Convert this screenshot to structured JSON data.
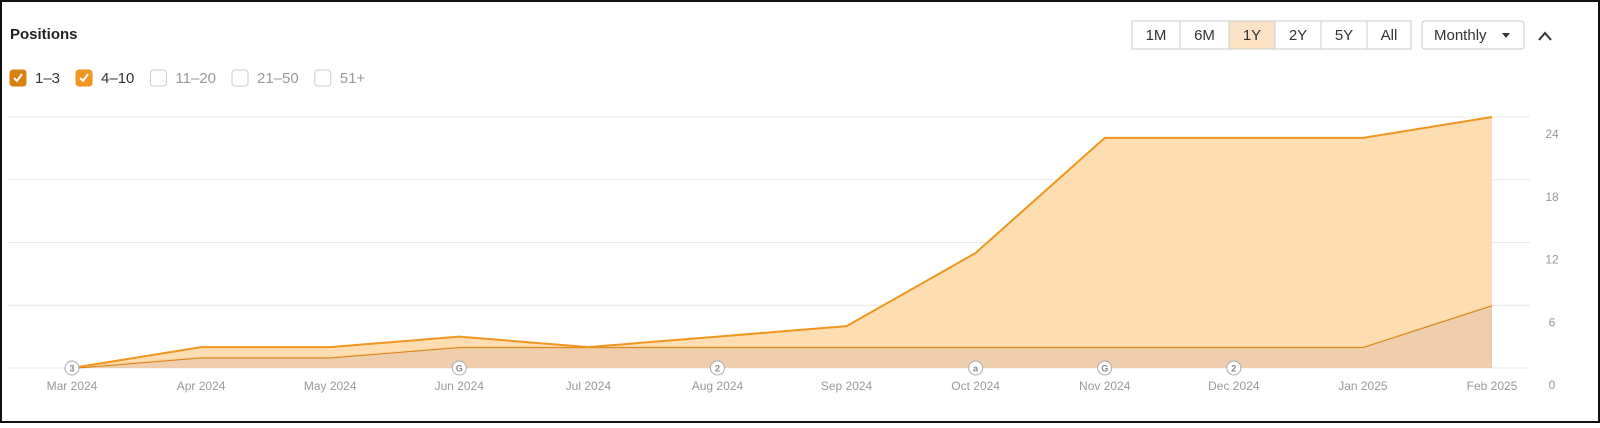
{
  "header": {
    "title": "Positions",
    "ranges": [
      "1M",
      "6M",
      "1Y",
      "2Y",
      "5Y",
      "All"
    ],
    "active_range": "1Y",
    "interval": "Monthly"
  },
  "chart_data": {
    "type": "area",
    "stacked": true,
    "categories": [
      "Mar 2024",
      "Apr 2024",
      "May 2024",
      "Jun 2024",
      "Jul 2024",
      "Aug 2024",
      "Sep 2024",
      "Oct 2024",
      "Nov 2024",
      "Dec 2024",
      "Jan 2025",
      "Feb 2025"
    ],
    "series": [
      {
        "name": "1–3",
        "checked": true,
        "color": "#d9800f",
        "fill": "#ecc9a4",
        "values": [
          0,
          1,
          1,
          2,
          2,
          2,
          2,
          2,
          2,
          2,
          2,
          6
        ]
      },
      {
        "name": "4–10",
        "checked": true,
        "color": "#f0961e",
        "fill": "#fdd9a8",
        "values": [
          0,
          1,
          1,
          1,
          0,
          1,
          2,
          9,
          20,
          20,
          20,
          18
        ]
      }
    ],
    "unchecked_series": [
      "11–20",
      "21–50",
      "51+"
    ],
    "annotations": [
      {
        "label": "3",
        "x": "Mar 2024"
      },
      {
        "label": "G",
        "x": "Jun 2024"
      },
      {
        "label": "2",
        "x": "Aug 2024"
      },
      {
        "label": "a",
        "x": "Oct 2024"
      },
      {
        "label": "G",
        "x": "Nov 2024"
      },
      {
        "label": "2",
        "x": "Dec 2024"
      }
    ],
    "ylim": [
      0,
      24
    ],
    "yticks": [
      0,
      6,
      12,
      18,
      24
    ],
    "grid": true
  }
}
